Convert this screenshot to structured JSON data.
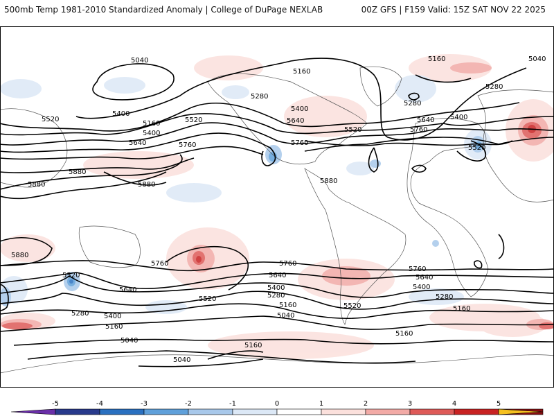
{
  "header": {
    "title_left": "500mb Temp 1981-2010 Standardized Anomaly | College of DuPage NEXLAB",
    "title_right": "00Z GFS | F159 Valid: 15Z SAT NOV 22 2025"
  },
  "contour_labels": [
    "5040",
    "5160",
    "5040",
    "5280",
    "5160",
    "5280",
    "5400",
    "5520",
    "5640",
    "5760",
    "5880",
    "5880",
    "5160",
    "5400",
    "5520",
    "5640",
    "5760",
    "5880",
    "5280",
    "5400",
    "5520",
    "5640",
    "5760",
    "5400",
    "5520",
    "5280",
    "5160",
    "5760",
    "5880",
    "5280",
    "5400",
    "5520",
    "5640",
    "5760",
    "5640",
    "5520",
    "5280",
    "5400",
    "5160",
    "5040",
    "5040",
    "5160",
    "5040",
    "5520",
    "5640",
    "5760",
    "5880",
    "5400",
    "5280",
    "5160",
    "5160",
    "5160"
  ],
  "colorbar": {
    "ticks": [
      "-5",
      "-4",
      "-3",
      "-2",
      "-1",
      "0",
      "1",
      "2",
      "3",
      "4",
      "5"
    ],
    "colors": [
      "#6a2fa8",
      "#283a8c",
      "#2a70c0",
      "#5fa0da",
      "#a8c8ea",
      "#dce8f6",
      "#ffffff",
      "#fbe0dc",
      "#f2aaa6",
      "#de5a58",
      "#c82222",
      "#8a0e12",
      "#f5c020"
    ]
  },
  "colors": {
    "warm": "#e45c5a",
    "cold": "#3a7cd0",
    "contour": "#000000",
    "land": "#555555"
  }
}
